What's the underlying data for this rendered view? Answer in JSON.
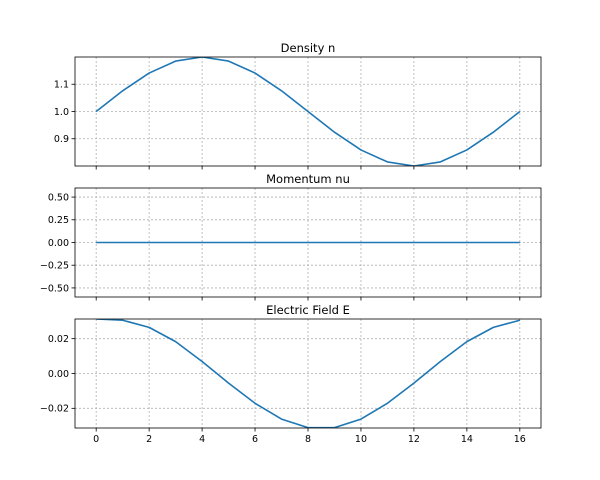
{
  "chart_data": [
    {
      "type": "line",
      "title": "Density n",
      "xlabel": "",
      "ylabel": "",
      "x": [
        0,
        1,
        2,
        3,
        4,
        5,
        6,
        7,
        8,
        9,
        10,
        11,
        12,
        13,
        14,
        15,
        16
      ],
      "series": [
        {
          "values": [
            1.0,
            1.076,
            1.141,
            1.185,
            1.2,
            1.185,
            1.141,
            1.076,
            1.0,
            0.924,
            0.859,
            0.815,
            0.8,
            0.815,
            0.859,
            0.924,
            1.0
          ]
        }
      ],
      "xlim": [
        -0.8,
        16.8
      ],
      "ylim": [
        0.8,
        1.2
      ],
      "xticks": [
        0,
        2,
        4,
        6,
        8,
        10,
        12,
        14,
        16
      ],
      "yticks": [
        0.9,
        1.0,
        1.1
      ],
      "ytick_labels": [
        "0.9",
        "1.0",
        "1.1"
      ],
      "show_x_tick_labels": false,
      "grid": true
    },
    {
      "type": "line",
      "title": "Momentum nu",
      "xlabel": "",
      "ylabel": "",
      "x": [
        0,
        1,
        2,
        3,
        4,
        5,
        6,
        7,
        8,
        9,
        10,
        11,
        12,
        13,
        14,
        15,
        16
      ],
      "series": [
        {
          "values": [
            0,
            0,
            0,
            0,
            0,
            0,
            0,
            0,
            0,
            0,
            0,
            0,
            0,
            0,
            0,
            0,
            0
          ]
        }
      ],
      "xlim": [
        -0.8,
        16.8
      ],
      "ylim": [
        -0.6,
        0.6
      ],
      "xticks": [
        0,
        2,
        4,
        6,
        8,
        10,
        12,
        14,
        16
      ],
      "yticks": [
        -0.5,
        -0.25,
        0.0,
        0.25,
        0.5
      ],
      "ytick_labels": [
        "−0.50",
        "−0.25",
        "0.00",
        "0.25",
        "0.50"
      ],
      "show_x_tick_labels": false,
      "grid": true
    },
    {
      "type": "line",
      "title": "Electric Field E",
      "xlabel": "",
      "ylabel": "",
      "x": [
        0,
        1,
        2,
        3,
        4,
        5,
        6,
        7,
        8,
        9,
        10,
        11,
        12,
        13,
        14,
        15,
        16
      ],
      "series": [
        {
          "values": [
            0.0313,
            0.0306,
            0.0265,
            0.0183,
            0.0069,
            -0.0055,
            -0.0171,
            -0.0262,
            -0.0311,
            -0.0311,
            -0.0262,
            -0.0171,
            -0.0055,
            0.0069,
            0.0183,
            0.0265,
            0.0306
          ]
        }
      ],
      "xlim": [
        -0.8,
        16.8
      ],
      "ylim": [
        -0.0313,
        0.0313
      ],
      "xticks": [
        0,
        2,
        4,
        6,
        8,
        10,
        12,
        14,
        16
      ],
      "xtick_labels": [
        "0",
        "2",
        "4",
        "6",
        "8",
        "10",
        "12",
        "14",
        "16"
      ],
      "yticks": [
        -0.02,
        0.0,
        0.02
      ],
      "ytick_labels": [
        "−0.02",
        "0.00",
        "0.02"
      ],
      "show_x_tick_labels": true,
      "grid": true
    }
  ],
  "style": {
    "line_color": "#1f77b4",
    "grid_color": "#b0b0b0",
    "axis_color": "#000000"
  }
}
